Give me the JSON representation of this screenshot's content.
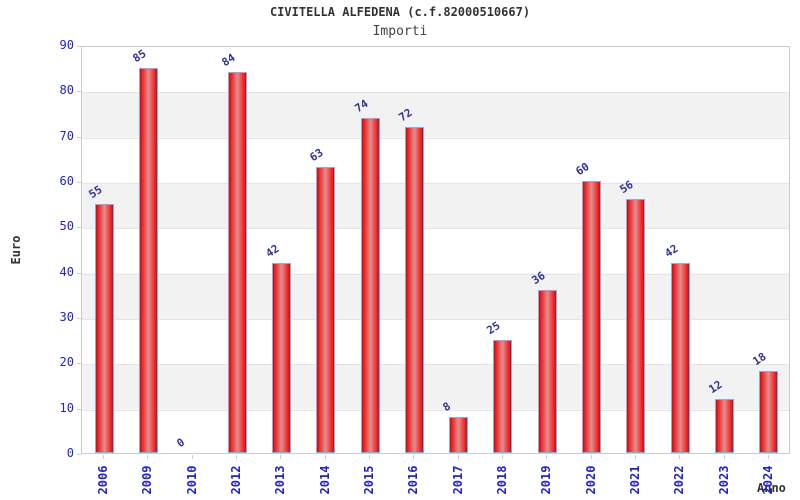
{
  "chart_data": {
    "type": "bar",
    "title": "CIVITELLA ALFEDENA (c.f.82000510667)",
    "subtitle": "Importi",
    "xlabel": "Anno",
    "ylabel": "Euro",
    "categories": [
      "2006",
      "2009",
      "2010",
      "2012",
      "2013",
      "2014",
      "2015",
      "2016",
      "2017",
      "2018",
      "2019",
      "2020",
      "2021",
      "2022",
      "2023",
      "2024"
    ],
    "values": [
      55,
      85,
      0,
      84,
      42,
      63,
      74,
      72,
      8,
      25,
      36,
      60,
      56,
      42,
      12,
      18
    ],
    "bar_labels": [
      "55",
      "85",
      "0",
      "84",
      "42",
      "63",
      "74",
      "72",
      "8",
      "25",
      "36",
      "60",
      "56",
      "42",
      "12",
      "18"
    ],
    "ylim": [
      0,
      90
    ],
    "yticks": [
      0,
      10,
      20,
      30,
      40,
      50,
      60,
      70,
      80,
      90
    ],
    "grid": "horizontal-bands",
    "legend": "none",
    "colors": {
      "band": "#f2f2f2",
      "plot_border": "#cccccc",
      "bar_edge": "#f02020",
      "bar_center": "#e18a8a",
      "bar_border": "#7fb0e8",
      "tick_label": "#2222cc",
      "value_label": "#333399",
      "title_text": "#333333",
      "subtitle_text": "#444444"
    }
  }
}
